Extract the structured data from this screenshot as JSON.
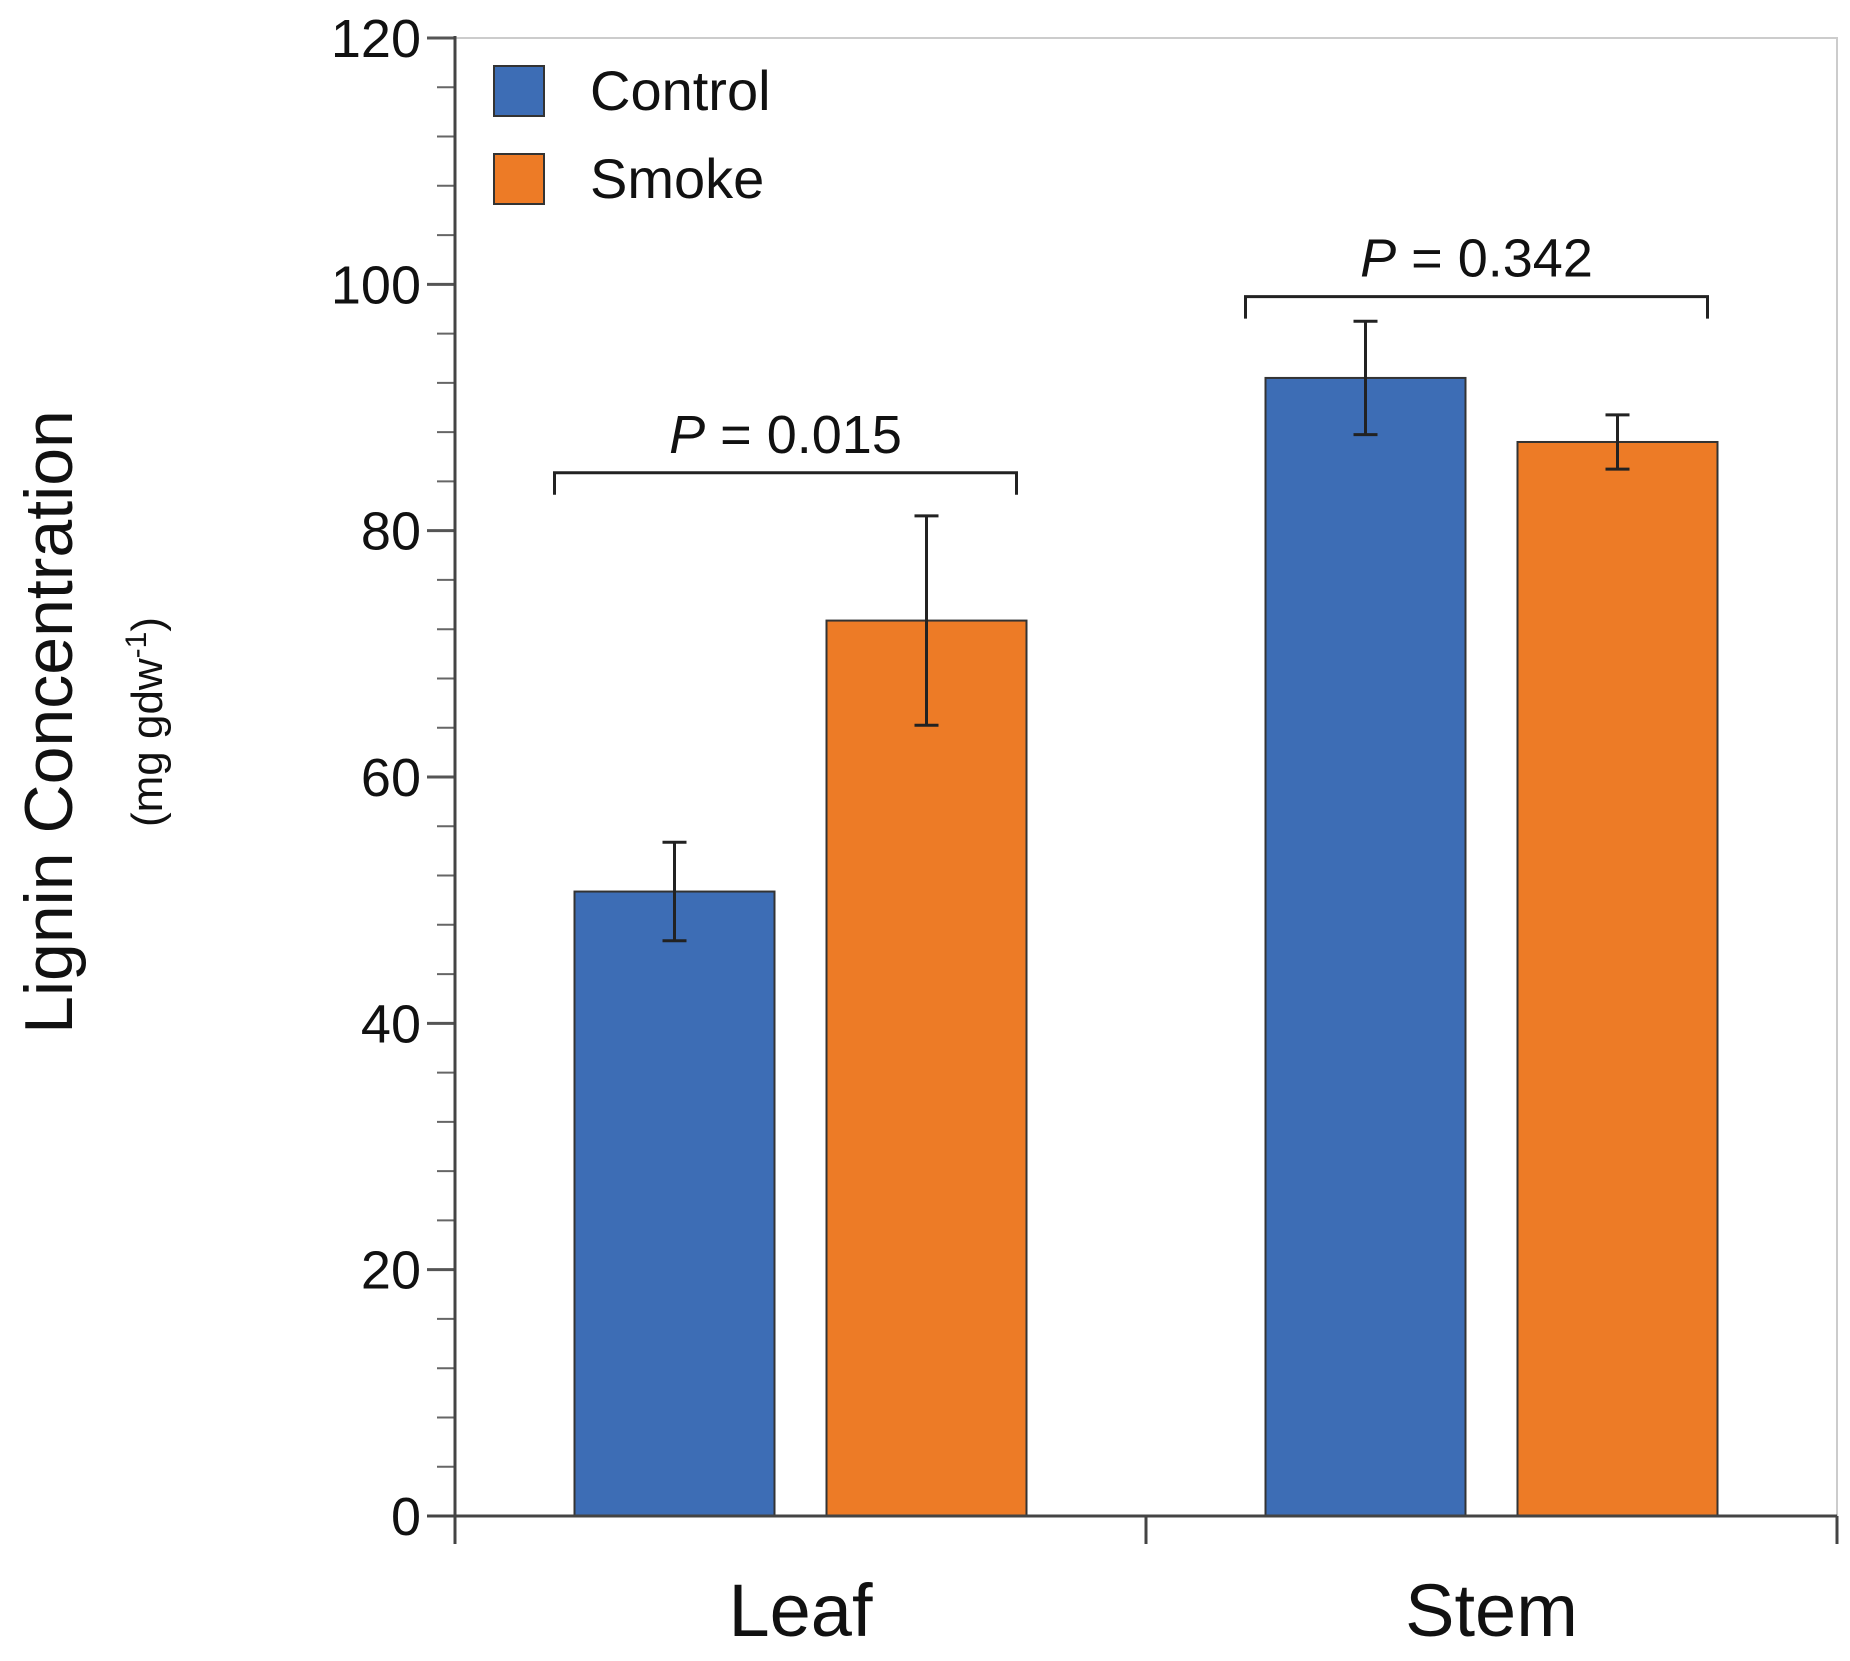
{
  "chart_data": {
    "type": "bar",
    "categories": [
      "Leaf",
      "Stem"
    ],
    "series": [
      {
        "name": "Control",
        "color": "#3d6db5",
        "values": [
          50.7,
          92.4
        ],
        "errors": [
          4.0,
          4.6
        ]
      },
      {
        "name": "Smoke",
        "color": "#ed7b26",
        "values": [
          72.7,
          87.2
        ],
        "errors": [
          8.5,
          2.2
        ]
      }
    ],
    "ylim": [
      0,
      120
    ],
    "ytick_values": [
      0,
      20,
      40,
      60,
      80,
      100,
      120
    ],
    "ytick_labels": [
      "0",
      "20",
      "40",
      "60",
      "80",
      "100",
      "120"
    ],
    "minor_tick_step": 4,
    "ylabel": {
      "main": "Lignin Concentration",
      "unit_prefix": "(mg gdw",
      "unit_sup": "-1",
      "unit_suffix": ")"
    },
    "xlabel": "",
    "grid": false,
    "legend_position": "top-left",
    "annotations": [
      {
        "category_index": 0,
        "prefix": "P",
        "text": " = 0.015",
        "bracket_level": 84.7
      },
      {
        "category_index": 1,
        "prefix": "P",
        "text": " = 0.342",
        "bracket_level": 99.0
      }
    ]
  }
}
